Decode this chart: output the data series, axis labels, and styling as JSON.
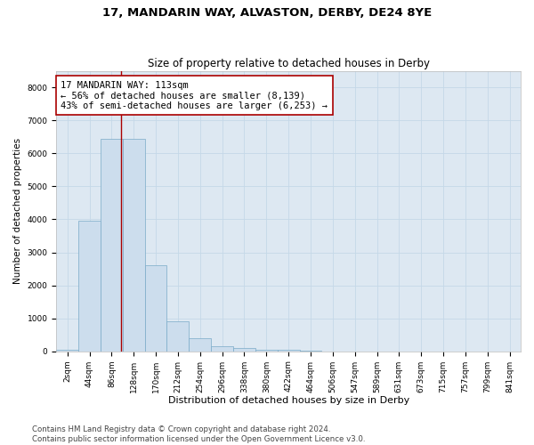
{
  "title1": "17, MANDARIN WAY, ALVASTON, DERBY, DE24 8YE",
  "title2": "Size of property relative to detached houses in Derby",
  "xlabel": "Distribution of detached houses by size in Derby",
  "ylabel": "Number of detached properties",
  "bin_labels": [
    "2sqm",
    "44sqm",
    "86sqm",
    "128sqm",
    "170sqm",
    "212sqm",
    "254sqm",
    "296sqm",
    "338sqm",
    "380sqm",
    "422sqm",
    "464sqm",
    "506sqm",
    "547sqm",
    "589sqm",
    "631sqm",
    "673sqm",
    "715sqm",
    "757sqm",
    "799sqm",
    "841sqm"
  ],
  "bar_values": [
    40,
    3950,
    6450,
    6450,
    2600,
    920,
    390,
    150,
    110,
    55,
    35,
    15,
    5,
    3,
    2,
    1,
    0,
    0,
    0,
    0,
    0
  ],
  "bar_color": "#ccdded",
  "bar_edge_color": "#7aaac8",
  "vline_color": "#aa0000",
  "vline_x": 2.42,
  "annotation_line1": "17 MANDARIN WAY: 113sqm",
  "annotation_line2": "← 56% of detached houses are smaller (8,139)",
  "annotation_line3": "43% of semi-detached houses are larger (6,253) →",
  "annotation_box_edge_color": "#aa0000",
  "ylim": [
    0,
    8500
  ],
  "yticks": [
    0,
    1000,
    2000,
    3000,
    4000,
    5000,
    6000,
    7000,
    8000
  ],
  "grid_color": "#c5d8e8",
  "bg_color": "#dde8f2",
  "footer_text": "Contains HM Land Registry data © Crown copyright and database right 2024.\nContains public sector information licensed under the Open Government Licence v3.0.",
  "title1_fontsize": 9.5,
  "title2_fontsize": 8.5,
  "xlabel_fontsize": 8,
  "ylabel_fontsize": 7.5,
  "tick_fontsize": 6.5,
  "annotation_fontsize": 7.5,
  "footer_fontsize": 6.2
}
